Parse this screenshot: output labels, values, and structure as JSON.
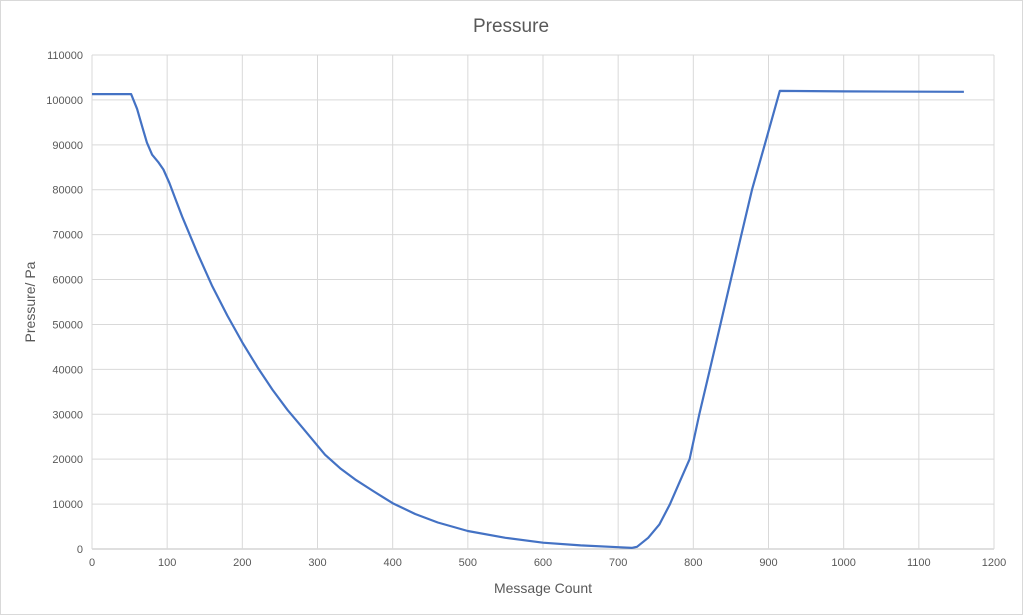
{
  "chart_data": {
    "type": "line",
    "title": "Pressure",
    "xlabel": "Message Count",
    "ylabel": "Pressure/ Pa",
    "xlim": [
      0,
      1200
    ],
    "ylim": [
      0,
      110000
    ],
    "xticks": [
      0,
      100,
      200,
      300,
      400,
      500,
      600,
      700,
      800,
      900,
      1000,
      1100,
      1200
    ],
    "yticks": [
      0,
      10000,
      20000,
      30000,
      40000,
      50000,
      60000,
      70000,
      80000,
      90000,
      100000,
      110000
    ],
    "grid": true,
    "legend": "none",
    "series": [
      {
        "name": "Pressure",
        "color": "#4472c4",
        "x": [
          0,
          52,
          60,
          66,
          73,
          80,
          88,
          95,
          103,
          112,
          120,
          140,
          160,
          180,
          200,
          220,
          240,
          260,
          280,
          300,
          310,
          330,
          350,
          375,
          400,
          430,
          460,
          500,
          550,
          600,
          650,
          700,
          718,
          725,
          740,
          755,
          769,
          782,
          795,
          808,
          822,
          836,
          850,
          864,
          878,
          895,
          915,
          1000,
          1160
        ],
        "y": [
          101300,
          101300,
          98000,
          94500,
          90500,
          87800,
          86200,
          84500,
          81500,
          77500,
          74000,
          66000,
          58500,
          52000,
          46000,
          40500,
          35500,
          31000,
          27000,
          23000,
          21000,
          18000,
          15500,
          12800,
          10200,
          7800,
          5900,
          4000,
          2500,
          1400,
          800,
          400,
          250,
          500,
          2500,
          5500,
          10000,
          15000,
          20000,
          30000,
          40000,
          50000,
          60000,
          70000,
          80000,
          90000,
          102000,
          101900,
          101800
        ]
      }
    ]
  }
}
